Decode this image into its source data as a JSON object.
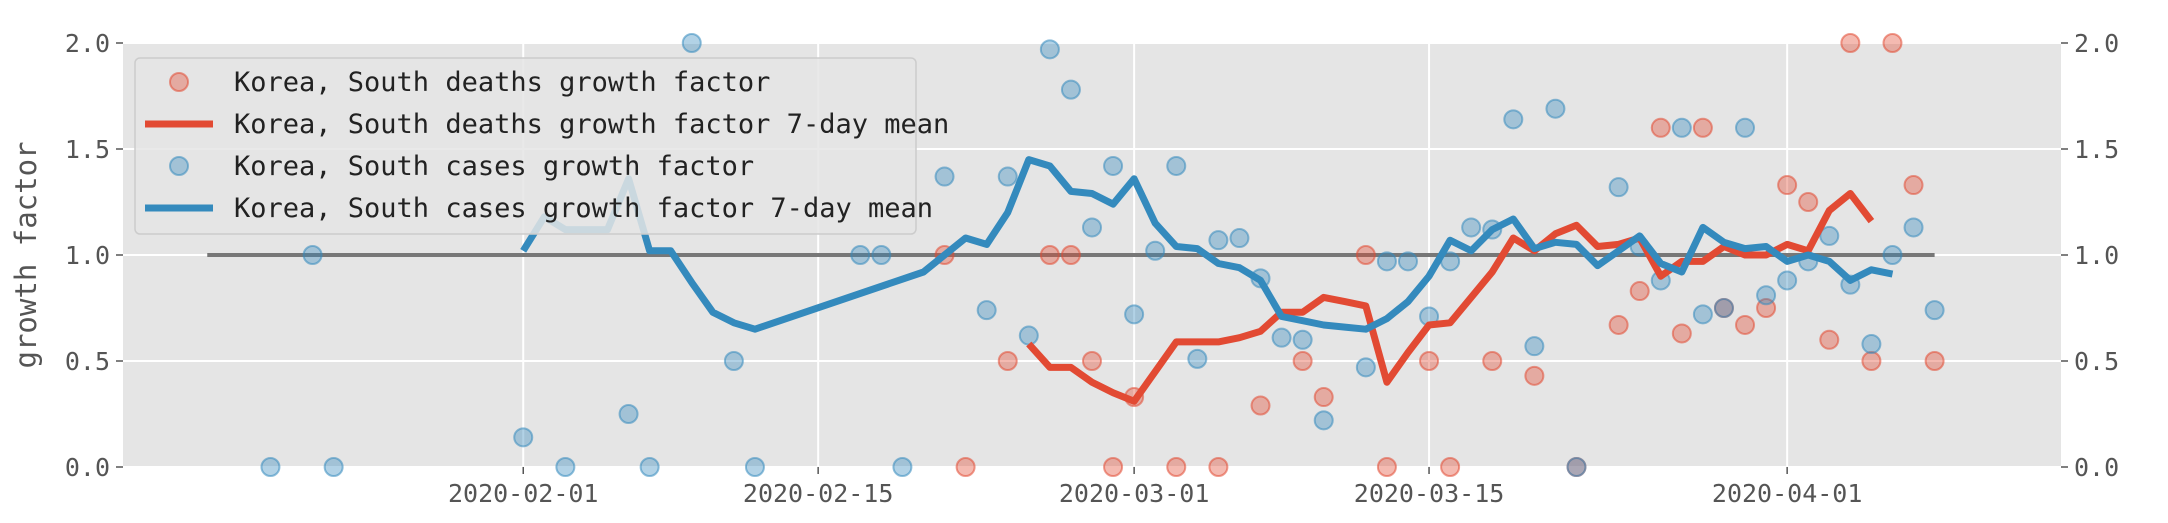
{
  "chart_data": {
    "type": "line",
    "title": "",
    "xlabel": "",
    "ylabel": "growth factor",
    "ylim": [
      0,
      2.0
    ],
    "yticks": [
      0.0,
      0.5,
      1.0,
      1.5,
      2.0
    ],
    "ytick_labels": [
      "0.0",
      "0.5",
      "1.0",
      "1.5",
      "2.0"
    ],
    "xlim": [
      "2020-01-13",
      "2020-04-14"
    ],
    "xticks": [
      "2020-02-01",
      "2020-02-15",
      "2020-03-01",
      "2020-03-15",
      "2020-04-01"
    ],
    "xtick_labels": [
      "2020-02-01",
      "2020-02-15",
      "2020-03-01",
      "2020-03-15",
      "2020-04-01"
    ],
    "right_axis_ticks": true,
    "grid": true,
    "legend_position": "top-left",
    "colors": {
      "deaths": "#e24a33",
      "cases": "#348abd",
      "reference": "#777777",
      "background": "#e5e5e5"
    },
    "reference_line": {
      "y": 1.0,
      "x": [
        "2020-01-17",
        "2020-04-08"
      ]
    },
    "series": [
      {
        "name": "Korea, South deaths growth factor",
        "kind": "scatter",
        "color": "#e24a33",
        "points": [
          [
            "2020-02-21",
            1.0
          ],
          [
            "2020-02-22",
            0.0
          ],
          [
            "2020-02-24",
            0.5
          ],
          [
            "2020-02-26",
            1.0
          ],
          [
            "2020-02-27",
            1.0
          ],
          [
            "2020-02-28",
            0.5
          ],
          [
            "2020-02-29",
            0.0
          ],
          [
            "2020-03-01",
            0.33
          ],
          [
            "2020-03-03",
            0.0
          ],
          [
            "2020-03-05",
            0.0
          ],
          [
            "2020-03-07",
            0.29
          ],
          [
            "2020-03-09",
            0.5
          ],
          [
            "2020-03-10",
            0.33
          ],
          [
            "2020-03-12",
            1.0
          ],
          [
            "2020-03-13",
            0.0
          ],
          [
            "2020-03-15",
            0.5
          ],
          [
            "2020-03-16",
            0.0
          ],
          [
            "2020-03-18",
            0.5
          ],
          [
            "2020-03-20",
            0.43
          ],
          [
            "2020-03-22",
            0.0
          ],
          [
            "2020-03-24",
            0.67
          ],
          [
            "2020-03-25",
            0.83
          ],
          [
            "2020-03-26",
            1.6
          ],
          [
            "2020-03-27",
            0.63
          ],
          [
            "2020-03-28",
            1.6
          ],
          [
            "2020-03-29",
            0.75
          ],
          [
            "2020-03-30",
            0.67
          ],
          [
            "2020-03-31",
            0.75
          ],
          [
            "2020-04-01",
            1.33
          ],
          [
            "2020-04-02",
            1.25
          ],
          [
            "2020-04-03",
            0.6
          ],
          [
            "2020-04-04",
            2.0
          ],
          [
            "2020-04-05",
            0.5
          ],
          [
            "2020-04-06",
            2.0
          ],
          [
            "2020-04-07",
            1.33
          ],
          [
            "2020-04-08",
            0.5
          ]
        ]
      },
      {
        "name": "Korea, South deaths growth factor 7-day mean",
        "kind": "line",
        "color": "#e24a33",
        "points": [
          [
            "2020-02-25",
            0.58
          ],
          [
            "2020-02-26",
            0.47
          ],
          [
            "2020-02-27",
            0.47
          ],
          [
            "2020-02-28",
            0.4
          ],
          [
            "2020-02-29",
            0.35
          ],
          [
            "2020-03-01",
            0.31
          ],
          [
            "2020-03-02",
            0.45
          ],
          [
            "2020-03-03",
            0.59
          ],
          [
            "2020-03-04",
            0.59
          ],
          [
            "2020-03-05",
            0.59
          ],
          [
            "2020-03-06",
            0.61
          ],
          [
            "2020-03-07",
            0.64
          ],
          [
            "2020-03-08",
            0.73
          ],
          [
            "2020-03-09",
            0.73
          ],
          [
            "2020-03-10",
            0.8
          ],
          [
            "2020-03-11",
            0.78
          ],
          [
            "2020-03-12",
            0.76
          ],
          [
            "2020-03-13",
            0.4
          ],
          [
            "2020-03-14",
            0.54
          ],
          [
            "2020-03-15",
            0.67
          ],
          [
            "2020-03-16",
            0.68
          ],
          [
            "2020-03-17",
            0.8
          ],
          [
            "2020-03-18",
            0.92
          ],
          [
            "2020-03-19",
            1.08
          ],
          [
            "2020-03-20",
            1.02
          ],
          [
            "2020-03-21",
            1.1
          ],
          [
            "2020-03-22",
            1.14
          ],
          [
            "2020-03-23",
            1.04
          ],
          [
            "2020-03-24",
            1.05
          ],
          [
            "2020-03-25",
            1.08
          ],
          [
            "2020-03-26",
            0.9
          ],
          [
            "2020-03-27",
            0.97
          ],
          [
            "2020-03-28",
            0.97
          ],
          [
            "2020-03-29",
            1.04
          ],
          [
            "2020-03-30",
            1.0
          ],
          [
            "2020-03-31",
            1.0
          ],
          [
            "2020-04-01",
            1.05
          ],
          [
            "2020-04-02",
            1.02
          ],
          [
            "2020-04-03",
            1.21
          ],
          [
            "2020-04-04",
            1.29
          ],
          [
            "2020-04-05",
            1.16
          ]
        ]
      },
      {
        "name": "Korea, South cases growth factor",
        "kind": "scatter",
        "color": "#348abd",
        "points": [
          [
            "2020-01-20",
            0.0
          ],
          [
            "2020-01-22",
            1.0
          ],
          [
            "2020-01-23",
            0.0
          ],
          [
            "2020-02-01",
            0.14
          ],
          [
            "2020-02-03",
            0.0
          ],
          [
            "2020-02-06",
            0.25
          ],
          [
            "2020-02-07",
            0.0
          ],
          [
            "2020-02-09",
            2.0
          ],
          [
            "2020-02-11",
            0.5
          ],
          [
            "2020-02-12",
            0.0
          ],
          [
            "2020-02-17",
            1.0
          ],
          [
            "2020-02-18",
            1.0
          ],
          [
            "2020-02-19",
            0.0
          ],
          [
            "2020-02-21",
            1.37
          ],
          [
            "2020-02-23",
            0.74
          ],
          [
            "2020-02-24",
            1.37
          ],
          [
            "2020-02-25",
            0.62
          ],
          [
            "2020-02-26",
            1.97
          ],
          [
            "2020-02-27",
            1.78
          ],
          [
            "2020-02-28",
            1.13
          ],
          [
            "2020-02-29",
            1.42
          ],
          [
            "2020-03-01",
            0.72
          ],
          [
            "2020-03-02",
            1.02
          ],
          [
            "2020-03-03",
            1.42
          ],
          [
            "2020-03-04",
            0.51
          ],
          [
            "2020-03-05",
            1.07
          ],
          [
            "2020-03-06",
            1.08
          ],
          [
            "2020-03-07",
            0.89
          ],
          [
            "2020-03-08",
            0.61
          ],
          [
            "2020-03-09",
            0.6
          ],
          [
            "2020-03-10",
            0.22
          ],
          [
            "2020-03-12",
            0.47
          ],
          [
            "2020-03-13",
            0.97
          ],
          [
            "2020-03-14",
            0.97
          ],
          [
            "2020-03-15",
            0.71
          ],
          [
            "2020-03-16",
            0.97
          ],
          [
            "2020-03-17",
            1.13
          ],
          [
            "2020-03-18",
            1.12
          ],
          [
            "2020-03-19",
            1.64
          ],
          [
            "2020-03-20",
            0.57
          ],
          [
            "2020-03-21",
            1.69
          ],
          [
            "2020-03-22",
            0.0
          ],
          [
            "2020-03-24",
            1.32
          ],
          [
            "2020-03-25",
            1.04
          ],
          [
            "2020-03-26",
            0.88
          ],
          [
            "2020-03-27",
            1.6
          ],
          [
            "2020-03-28",
            0.72
          ],
          [
            "2020-03-29",
            0.75
          ],
          [
            "2020-03-30",
            1.6
          ],
          [
            "2020-03-31",
            0.81
          ],
          [
            "2020-04-01",
            0.88
          ],
          [
            "2020-04-02",
            0.97
          ],
          [
            "2020-04-03",
            1.09
          ],
          [
            "2020-04-04",
            0.86
          ],
          [
            "2020-04-05",
            0.58
          ],
          [
            "2020-04-06",
            1.0
          ],
          [
            "2020-04-07",
            1.13
          ],
          [
            "2020-04-08",
            0.74
          ]
        ]
      },
      {
        "name": "Korea, South cases growth factor 7-day mean",
        "kind": "line",
        "color": "#348abd",
        "points": [
          [
            "2020-02-01",
            1.02
          ],
          [
            "2020-02-02",
            1.18
          ],
          [
            "2020-02-03",
            1.12
          ],
          [
            "2020-02-04",
            1.12
          ],
          [
            "2020-02-05",
            1.12
          ],
          [
            "2020-02-06",
            1.36
          ],
          [
            "2020-02-07",
            1.02
          ],
          [
            "2020-02-08",
            1.02
          ],
          [
            "2020-02-09",
            0.87
          ],
          [
            "2020-02-10",
            0.73
          ],
          [
            "2020-02-11",
            0.68
          ],
          [
            "2020-02-12",
            0.65
          ],
          [
            "2020-02-20",
            0.92
          ],
          [
            "2020-02-21",
            1.0
          ],
          [
            "2020-02-22",
            1.08
          ],
          [
            "2020-02-23",
            1.05
          ],
          [
            "2020-02-24",
            1.2
          ],
          [
            "2020-02-25",
            1.45
          ],
          [
            "2020-02-26",
            1.42
          ],
          [
            "2020-02-27",
            1.3
          ],
          [
            "2020-02-28",
            1.29
          ],
          [
            "2020-02-29",
            1.24
          ],
          [
            "2020-03-01",
            1.36
          ],
          [
            "2020-03-02",
            1.15
          ],
          [
            "2020-03-03",
            1.04
          ],
          [
            "2020-03-04",
            1.03
          ],
          [
            "2020-03-05",
            0.96
          ],
          [
            "2020-03-06",
            0.94
          ],
          [
            "2020-03-07",
            0.88
          ],
          [
            "2020-03-08",
            0.71
          ],
          [
            "2020-03-09",
            0.69
          ],
          [
            "2020-03-10",
            0.67
          ],
          [
            "2020-03-11",
            0.66
          ],
          [
            "2020-03-12",
            0.65
          ],
          [
            "2020-03-13",
            0.7
          ],
          [
            "2020-03-14",
            0.78
          ],
          [
            "2020-03-15",
            0.9
          ],
          [
            "2020-03-16",
            1.07
          ],
          [
            "2020-03-17",
            1.02
          ],
          [
            "2020-03-18",
            1.12
          ],
          [
            "2020-03-19",
            1.17
          ],
          [
            "2020-03-20",
            1.03
          ],
          [
            "2020-03-21",
            1.06
          ],
          [
            "2020-03-22",
            1.05
          ],
          [
            "2020-03-23",
            0.95
          ],
          [
            "2020-03-24",
            1.02
          ],
          [
            "2020-03-25",
            1.09
          ],
          [
            "2020-03-26",
            0.96
          ],
          [
            "2020-03-27",
            0.92
          ],
          [
            "2020-03-28",
            1.13
          ],
          [
            "2020-03-29",
            1.06
          ],
          [
            "2020-03-30",
            1.03
          ],
          [
            "2020-03-31",
            1.04
          ],
          [
            "2020-04-01",
            0.97
          ],
          [
            "2020-04-02",
            1.0
          ],
          [
            "2020-04-03",
            0.97
          ],
          [
            "2020-04-04",
            0.88
          ],
          [
            "2020-04-05",
            0.93
          ],
          [
            "2020-04-06",
            0.91
          ]
        ]
      }
    ]
  }
}
